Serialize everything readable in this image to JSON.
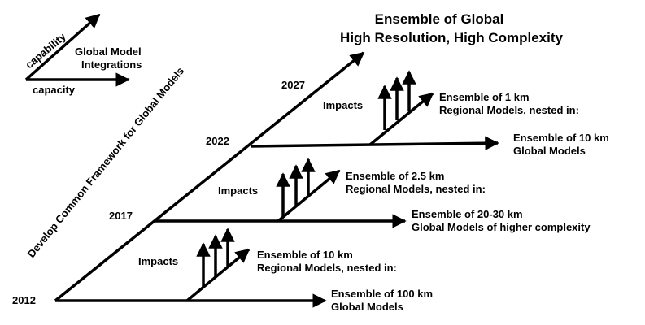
{
  "title": {
    "line1": "Ensemble of Global",
    "line2": "High Resolution, High Complexity"
  },
  "legend": {
    "capability": "capability",
    "capacity": "capacity",
    "integrations_line1": "Global Model",
    "integrations_line2": "Integrations"
  },
  "framework_label": "Develop Common Framework for Global Models",
  "years": {
    "y2012": "2012",
    "y2017": "2017",
    "y2022": "2022",
    "y2027": "2027"
  },
  "stages": {
    "s2012": {
      "impacts": "Impacts",
      "regional_line1": "Ensemble of 10 km",
      "regional_line2": "Regional Models, nested in:",
      "global_line1": "Ensemble of 100 km",
      "global_line2": "Global Models"
    },
    "s2017": {
      "impacts": "Impacts",
      "regional_line1": "Ensemble of 2.5 km",
      "regional_line2": "Regional Models, nested in:",
      "global_line1": "Ensemble of 20-30 km",
      "global_line2": "Global Models of higher complexity"
    },
    "s2022": {
      "impacts": "Impacts",
      "regional_line1": "Ensemble of 1 km",
      "regional_line2": "Regional Models, nested in:",
      "global_line1": "Ensemble of 10 km",
      "global_line2": "Global Models"
    }
  }
}
